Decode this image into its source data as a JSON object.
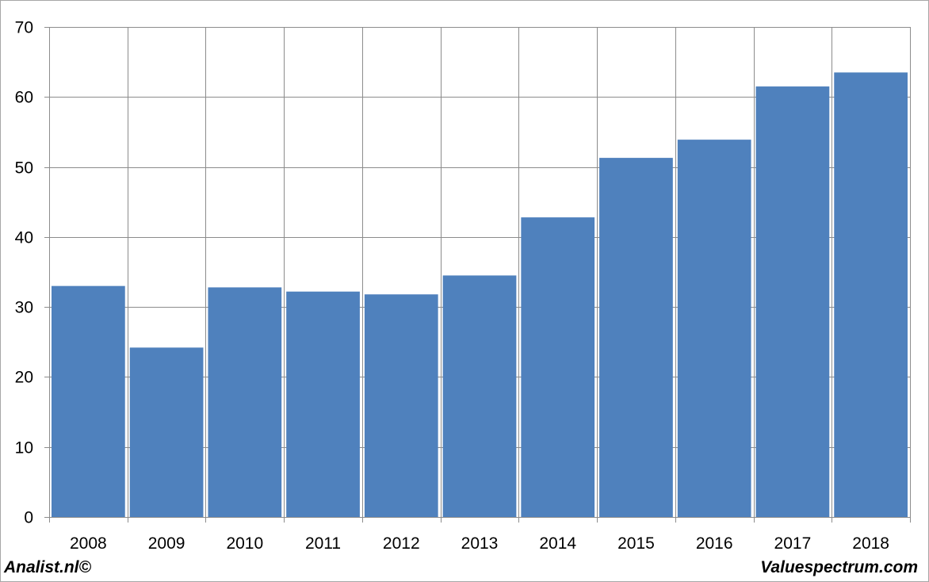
{
  "chart_data": {
    "type": "bar",
    "title": "",
    "xlabel": "",
    "ylabel": "",
    "categories": [
      "2008",
      "2009",
      "2010",
      "2011",
      "2012",
      "2013",
      "2014",
      "2015",
      "2016",
      "2017",
      "2018"
    ],
    "values": [
      33.0,
      24.2,
      32.8,
      32.2,
      31.8,
      34.5,
      42.8,
      51.3,
      53.9,
      61.5,
      63.5
    ],
    "ylim": [
      0,
      70
    ],
    "yticks": [
      0,
      10,
      20,
      30,
      40,
      50,
      60,
      70
    ],
    "grid": true,
    "legend": "none",
    "colors": {
      "bar": "#4f81bd",
      "grid": "#8c8c8c",
      "axis": "#8c8c8c",
      "frame": "#a6a6a6"
    }
  },
  "footer": {
    "left": "Analist.nl©",
    "right": "Valuespectrum.com"
  }
}
